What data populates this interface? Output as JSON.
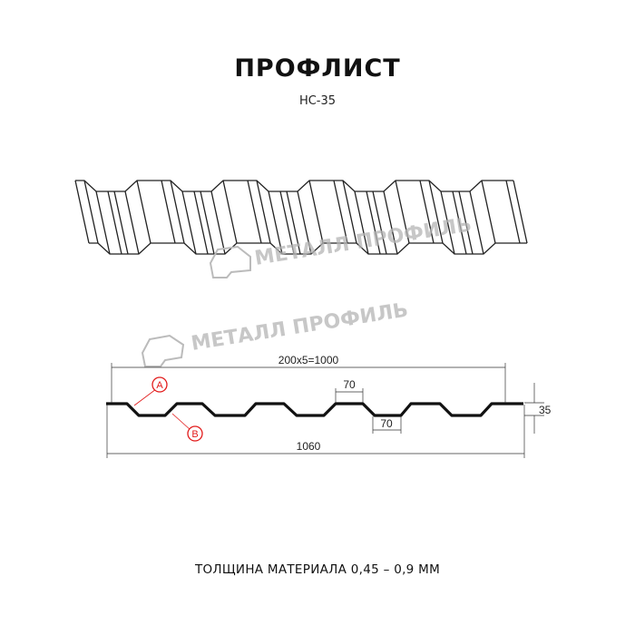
{
  "title": "ПРОФЛИСТ",
  "subtitle": "НС-35",
  "watermark": "МЕТАЛЛ ПРОФИЛЬ",
  "dimensions": {
    "pitch_total": "200x5=1000",
    "top_width": "70",
    "bottom_width": "70",
    "height": "35",
    "total_width": "1060"
  },
  "markers": {
    "a": "A",
    "b": "B"
  },
  "footer": "ТОЛЩИНА МАТЕРИАЛА 0,45 – 0,9 ММ",
  "colors": {
    "line": "#111111",
    "marker": "#e21a1a",
    "watermark": "#b5b5b5"
  }
}
